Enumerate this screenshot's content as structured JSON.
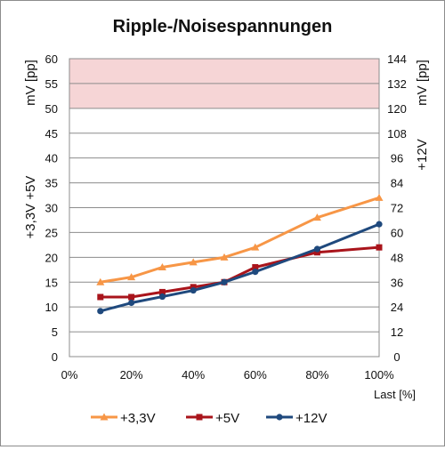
{
  "chart_data": {
    "type": "line",
    "title": "Ripple-/Noisespannungen",
    "xlabel": "Last [%]",
    "x": [
      "10%",
      "20%",
      "30%",
      "40%",
      "50%",
      "60%",
      "80%",
      "100%"
    ],
    "x_values": [
      10,
      20,
      30,
      40,
      50,
      60,
      80,
      100
    ],
    "xlim": [
      0,
      100
    ],
    "x_ticks": [
      "0%",
      "20%",
      "40%",
      "60%",
      "80%",
      "100%"
    ],
    "x_tick_values": [
      0,
      20,
      40,
      60,
      80,
      100
    ],
    "y_left": {
      "label_lines": [
        "+3,3V +5V",
        "mV [pp]"
      ],
      "ylim": [
        0,
        60
      ],
      "ticks": [
        "0",
        "5",
        "10",
        "15",
        "20",
        "25",
        "30",
        "35",
        "40",
        "45",
        "50",
        "55",
        "60"
      ],
      "tick_values": [
        0,
        5,
        10,
        15,
        20,
        25,
        30,
        35,
        40,
        45,
        50,
        55,
        60
      ]
    },
    "y_right": {
      "label_lines": [
        "+12V",
        "mV [pp]"
      ],
      "ylim": [
        0,
        144
      ],
      "ticks": [
        "0",
        "12",
        "24",
        "36",
        "48",
        "60",
        "72",
        "84",
        "96",
        "108",
        "120",
        "132",
        "144"
      ],
      "tick_values": [
        0,
        12,
        24,
        36,
        48,
        60,
        72,
        84,
        96,
        108,
        120,
        132,
        144
      ]
    },
    "limit_band": {
      "axis": "left",
      "from": 50,
      "to": 60,
      "color": "#f6d5d6"
    },
    "series": [
      {
        "name": "+3,3V",
        "axis": "left",
        "color": "#f79646",
        "marker": "triangle",
        "values": [
          15,
          16,
          18,
          19,
          20,
          22,
          28,
          32
        ]
      },
      {
        "name": "+5V",
        "axis": "left",
        "color": "#a9141b",
        "marker": "square",
        "values": [
          12,
          12,
          13,
          14,
          15,
          18,
          21,
          22
        ]
      },
      {
        "name": "+12V",
        "axis": "right",
        "color": "#1f497d",
        "marker": "circle",
        "values": [
          22,
          26,
          29,
          32,
          36,
          41,
          52,
          64
        ]
      }
    ],
    "grid": true,
    "legend_position": "bottom"
  }
}
